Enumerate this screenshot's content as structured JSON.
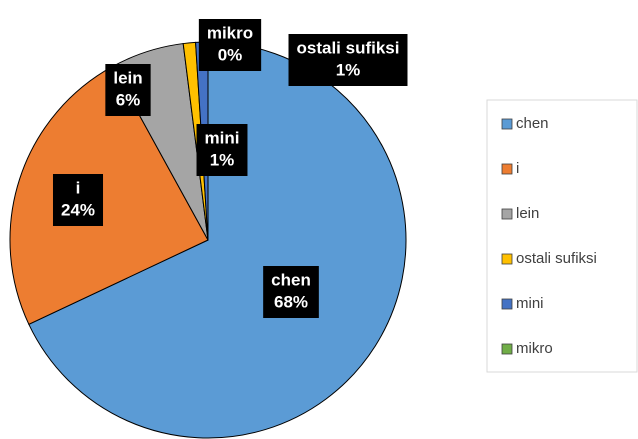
{
  "chart_data": {
    "type": "pie",
    "categories": [
      "chen",
      "i",
      "lein",
      "ostali sufiksi",
      "mini",
      "mikro"
    ],
    "values": [
      68,
      24,
      6,
      1,
      1,
      0
    ],
    "value_labels": [
      "68%",
      "24%",
      "6%",
      "1%",
      "1%",
      "0%"
    ],
    "colors": [
      "#5b9bd5",
      "#ed7d31",
      "#a5a5a5",
      "#ffc000",
      "#4472c4",
      "#70ad47"
    ],
    "legend": "right"
  }
}
